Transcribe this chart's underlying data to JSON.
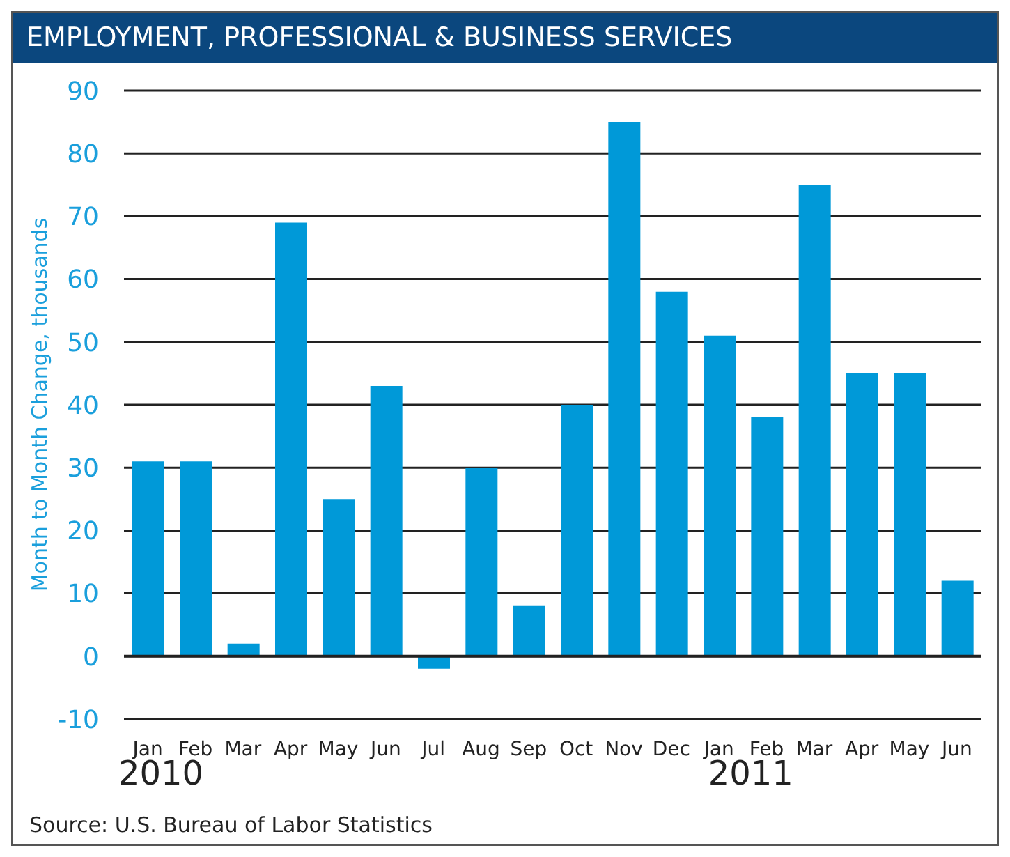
{
  "chart_data": {
    "type": "bar",
    "title": "EMPLOYMENT, PROFESSIONAL & BUSINESS SERVICES",
    "ylabel": "Month to Month Change, thousands",
    "categories": [
      "Jan",
      "Feb",
      "Mar",
      "Apr",
      "May",
      "Jun",
      "Jul",
      "Aug",
      "Sep",
      "Oct",
      "Nov",
      "Dec",
      "Jan",
      "Feb",
      "Mar",
      "Apr",
      "May",
      "Jun"
    ],
    "values": [
      31,
      31,
      2,
      69,
      25,
      43,
      -2,
      30,
      8,
      40,
      85,
      58,
      51,
      38,
      75,
      45,
      45,
      12
    ],
    "color": "#0099d8",
    "ylim": [
      -10,
      90
    ],
    "yticks": [
      -10,
      0,
      10,
      20,
      30,
      40,
      50,
      60,
      70,
      80,
      90
    ],
    "grid": "y",
    "annotations": [
      "2010",
      "2011",
      "Source: U.S. Bureau of Labor Statistics"
    ]
  }
}
